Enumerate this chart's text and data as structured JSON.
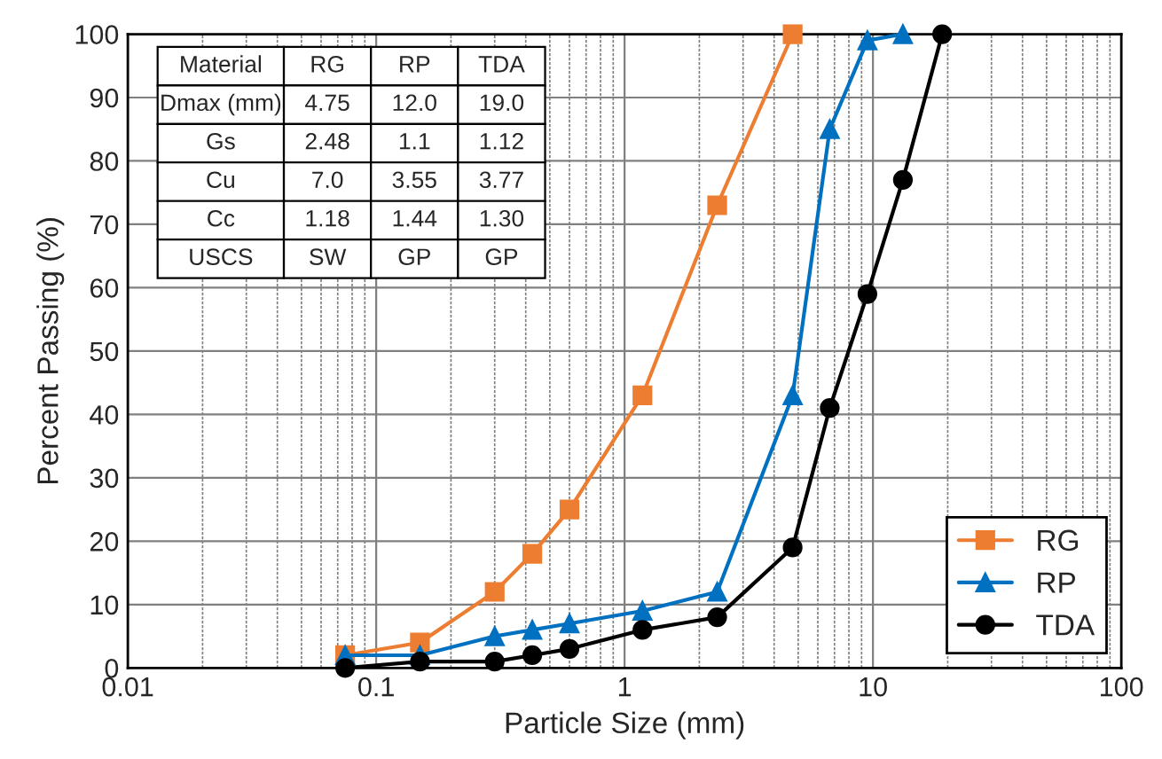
{
  "chart_data": {
    "type": "line",
    "xlabel": "Particle Size (mm)",
    "ylabel": "Percent Passing (%)",
    "log": "x",
    "xlim": [
      0.01,
      100
    ],
    "xticks": [
      0.01,
      0.1,
      1,
      10,
      100
    ],
    "ylim": [
      0,
      100
    ],
    "yticks": [
      0,
      10,
      20,
      30,
      40,
      50,
      60,
      70,
      80,
      90,
      100
    ],
    "grid": true,
    "legend": "bottom right",
    "series": [
      {
        "name": "RG",
        "color": "#ed7d31",
        "marker": "square",
        "x": [
          0.075,
          0.15,
          0.3,
          0.425,
          0.6,
          1.18,
          2.36,
          4.75
        ],
        "values": [
          2,
          4,
          12,
          18,
          25,
          43,
          73,
          100
        ]
      },
      {
        "name": "RP",
        "color": "#0070c0",
        "marker": "triangle",
        "x": [
          0.075,
          0.15,
          0.3,
          0.425,
          0.6,
          1.18,
          2.36,
          4.75,
          6.7,
          9.5,
          13.2
        ],
        "values": [
          2,
          2,
          5,
          6,
          7,
          9,
          12,
          43,
          85,
          99,
          100
        ]
      },
      {
        "name": "TDA",
        "color": "#000000",
        "marker": "circle",
        "x": [
          0.075,
          0.15,
          0.3,
          0.425,
          0.6,
          1.18,
          2.36,
          4.75,
          6.7,
          9.5,
          13.2,
          19
        ],
        "values": [
          0,
          1,
          1,
          2,
          3,
          6,
          8,
          19,
          41,
          59,
          77,
          100
        ]
      }
    ],
    "annotations": [
      "Material\tRG\tRP\tTDA",
      "Dmax (mm)\t4.75\t12.0\t19.0",
      "Gs\t2.48\t1.1\t1.12",
      "Cu\t7.0\t3.55\t3.77",
      "Cc\t1.18\t1.44\t1.30",
      "USCS\tSW\tGP\tGP"
    ]
  }
}
